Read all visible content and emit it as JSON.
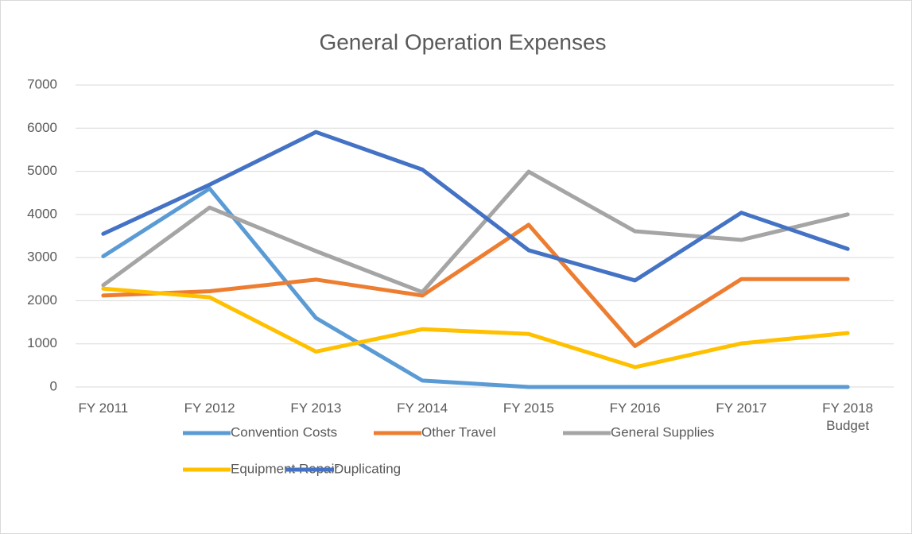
{
  "chart_data": {
    "type": "line",
    "title": "General Operation Expenses",
    "categories": [
      "FY 2011",
      "FY 2012",
      "FY 2013",
      "FY 2014",
      "FY 2015",
      "FY 2016",
      "FY 2017",
      "FY 2018 Budget"
    ],
    "series": [
      {
        "name": "Convention Costs",
        "color": "#5b9bd5",
        "values": [
          3030,
          4600,
          1600,
          150,
          0,
          0,
          0,
          0
        ]
      },
      {
        "name": "Other Travel",
        "color": "#ed7d31",
        "values": [
          2120,
          2220,
          2490,
          2120,
          3760,
          950,
          2500,
          2500
        ]
      },
      {
        "name": "General Supplies",
        "color": "#a5a5a5",
        "values": [
          2360,
          4160,
          3150,
          2200,
          4990,
          3610,
          3410,
          4000
        ]
      },
      {
        "name": "Equipment Repair",
        "color": "#ffc000",
        "values": [
          2280,
          2080,
          820,
          1340,
          1230,
          460,
          1010,
          1250
        ]
      },
      {
        "name": "Duplicating",
        "color": "#4472c4",
        "values": [
          3550,
          4690,
          5910,
          5040,
          3170,
          2470,
          4040,
          3200
        ]
      }
    ],
    "ylim": [
      0,
      7000
    ],
    "yticks": [
      0,
      1000,
      2000,
      3000,
      4000,
      5000,
      6000,
      7000
    ],
    "grid": true,
    "legend": "bottom"
  }
}
